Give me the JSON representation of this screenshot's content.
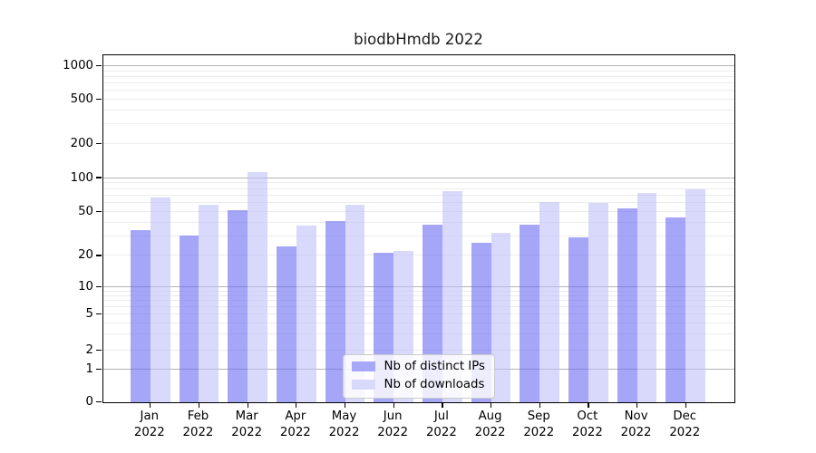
{
  "title": "biodbHmdb 2022",
  "colors": {
    "bar_distinct_ips": "rgba(107,107,244,0.6)",
    "bar_downloads": "rgba(192,192,248,0.6)",
    "legend_swatch_ips": "#a8a8f8",
    "legend_swatch_downloads": "#d9d9fb",
    "grid_major": "#b3b3b3",
    "grid_minor": "#ececec",
    "axis_color": "#000000"
  },
  "legend": {
    "items": [
      {
        "label": "Nb of distinct IPs"
      },
      {
        "label": "Nb of downloads"
      }
    ]
  },
  "chart_data": {
    "type": "bar",
    "title": "biodbHmdb 2022",
    "categories": [
      "Jan 2022",
      "Feb 2022",
      "Mar 2022",
      "Apr 2022",
      "May 2022",
      "Jun 2022",
      "Jul 2022",
      "Aug 2022",
      "Sep 2022",
      "Oct 2022",
      "Nov 2022",
      "Dec 2022"
    ],
    "series": [
      {
        "name": "Nb of distinct IPs",
        "values": [
          34,
          30,
          51,
          24,
          41,
          21,
          38,
          26,
          38,
          29,
          53,
          44
        ]
      },
      {
        "name": "Nb of downloads",
        "values": [
          67,
          57,
          112,
          37,
          57,
          22,
          76,
          32,
          60,
          59,
          73,
          79
        ]
      }
    ],
    "xlabel": "",
    "ylabel": "",
    "yscale": "symlog",
    "ylim": [
      0,
      1200
    ],
    "grid": true,
    "legend_position": "lower center",
    "y_ticks": [
      {
        "value": 1000,
        "frac": 0.032
      },
      {
        "value": 500,
        "frac": 0.128
      },
      {
        "value": 200,
        "frac": 0.256
      },
      {
        "value": 100,
        "frac": 0.354
      },
      {
        "value": 50,
        "frac": 0.451
      },
      {
        "value": 20,
        "frac": 0.578
      },
      {
        "value": 10,
        "frac": 0.669
      },
      {
        "value": 5,
        "frac": 0.746
      },
      {
        "value": 2,
        "frac": 0.851
      },
      {
        "value": 1,
        "frac": 0.906
      },
      {
        "value": 0,
        "frac": 1.0
      }
    ],
    "major_grid_values": [
      1000,
      100,
      10,
      1
    ]
  }
}
